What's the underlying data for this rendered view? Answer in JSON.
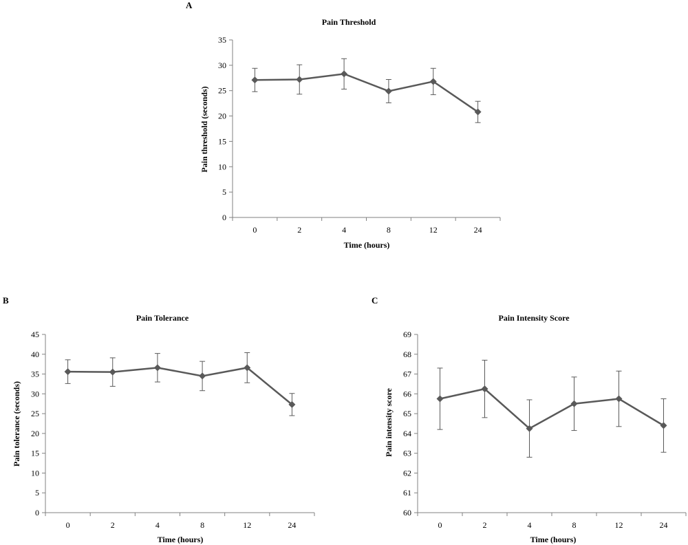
{
  "chart_data": [
    {
      "panel": "A",
      "type": "line",
      "title": "Pain Threshold",
      "xlabel": "Time (hours)",
      "ylabel": "Pain threshold (seconds)",
      "categories": [
        "0",
        "2",
        "4",
        "8",
        "12",
        "24"
      ],
      "values": [
        27.1,
        27.2,
        28.3,
        24.9,
        26.8,
        20.8
      ],
      "error": [
        2.3,
        2.9,
        3.0,
        2.3,
        2.6,
        2.1
      ],
      "ylim": [
        0,
        35
      ],
      "yticks": [
        "0",
        "5",
        "10",
        "15",
        "20",
        "25",
        "30",
        "35"
      ],
      "grid": false,
      "color": "#595959"
    },
    {
      "panel": "B",
      "type": "line",
      "title": "Pain Tolerance",
      "xlabel": "Time (hours)",
      "ylabel": "Pain tolerance (seconds)",
      "categories": [
        "0",
        "2",
        "4",
        "8",
        "12",
        "24"
      ],
      "values": [
        35.6,
        35.5,
        36.6,
        34.5,
        36.6,
        27.3
      ],
      "error": [
        3.0,
        3.6,
        3.6,
        3.7,
        3.8,
        2.8
      ],
      "ylim": [
        0,
        45
      ],
      "yticks": [
        "0",
        "5",
        "10",
        "15",
        "20",
        "25",
        "30",
        "35",
        "40",
        "45"
      ],
      "grid": false,
      "color": "#595959"
    },
    {
      "panel": "C",
      "type": "line",
      "title": "Pain Intensity Score",
      "xlabel": "Time (hours)",
      "ylabel": "Pain intensity score",
      "categories": [
        "0",
        "2",
        "4",
        "8",
        "12",
        "24"
      ],
      "values": [
        65.75,
        66.25,
        64.25,
        65.5,
        65.75,
        64.4
      ],
      "error": [
        1.55,
        1.45,
        1.45,
        1.35,
        1.4,
        1.35
      ],
      "ylim": [
        60,
        69
      ],
      "yticks": [
        "60",
        "61",
        "62",
        "63",
        "64",
        "65",
        "66",
        "67",
        "68",
        "69"
      ],
      "grid": false,
      "color": "#595959"
    }
  ]
}
